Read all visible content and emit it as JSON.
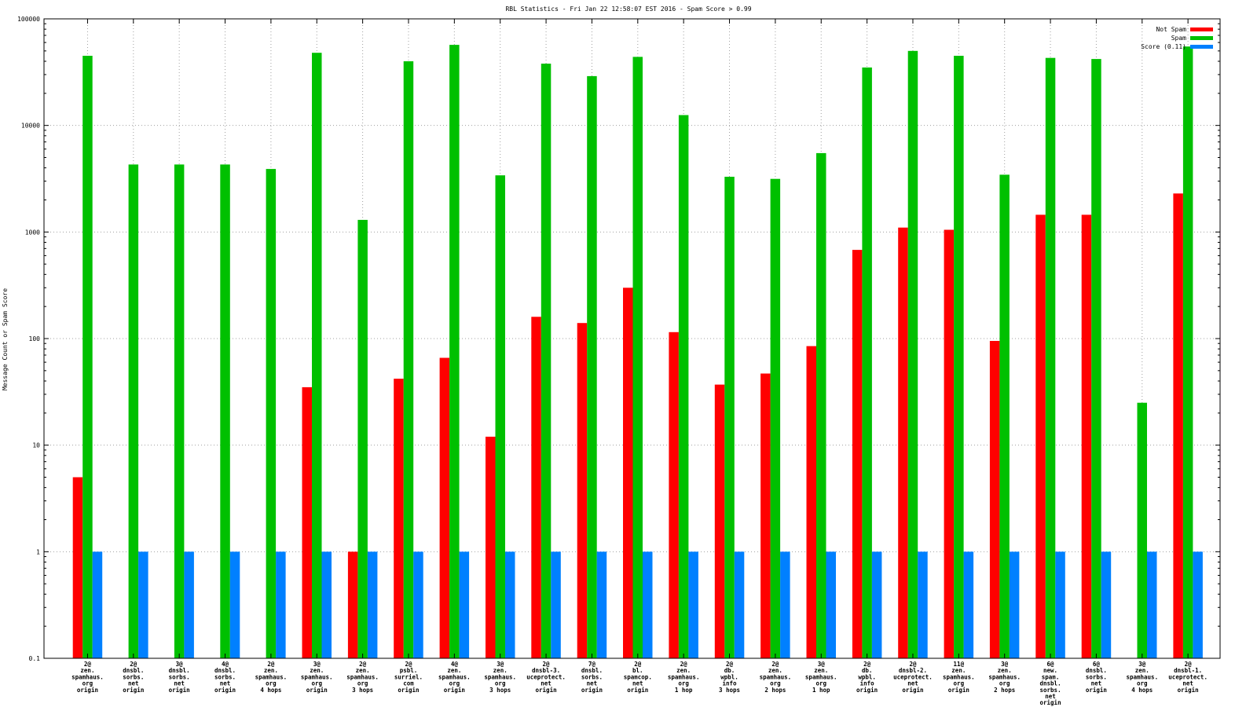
{
  "chart_data": {
    "type": "bar",
    "title": "RBL Statistics - Fri Jan 22 12:58:07 EST 2016 - Spam Score > 0.99",
    "xlabel": "",
    "ylabel": "Message Count or Spam Score",
    "yscale": "log",
    "ylim": [
      0.1,
      100000
    ],
    "yticks": [
      "0.1",
      "1",
      "10",
      "100",
      "1000",
      "10000",
      "100000"
    ],
    "grid": true,
    "legend_position": "top-right",
    "categories": [
      [
        "2@",
        "zen.",
        "spamhaus.",
        "org",
        "origin"
      ],
      [
        "2@",
        "dnsbl.",
        "sorbs.",
        "net",
        "origin"
      ],
      [
        "3@",
        "dnsbl.",
        "sorbs.",
        "net",
        "origin"
      ],
      [
        "4@",
        "dnsbl.",
        "sorbs.",
        "net",
        "origin"
      ],
      [
        "2@",
        "zen.",
        "spamhaus.",
        "org",
        "4 hops"
      ],
      [
        "3@",
        "zen.",
        "spamhaus.",
        "org",
        "origin"
      ],
      [
        "2@",
        "zen.",
        "spamhaus.",
        "org",
        "3 hops"
      ],
      [
        "2@",
        "psbl.",
        "surriel.",
        "com",
        "origin"
      ],
      [
        "4@",
        "zen.",
        "spamhaus.",
        "org",
        "origin"
      ],
      [
        "3@",
        "zen.",
        "spamhaus.",
        "org",
        "3 hops"
      ],
      [
        "2@",
        "dnsbl-3.",
        "uceprotect.",
        "net",
        "origin"
      ],
      [
        "7@",
        "dnsbl.",
        "sorbs.",
        "net",
        "origin"
      ],
      [
        "2@",
        "bl.",
        "spamcop.",
        "net",
        "origin"
      ],
      [
        "2@",
        "zen.",
        "spamhaus.",
        "org",
        "1 hop"
      ],
      [
        "2@",
        "db.",
        "wpbl.",
        "info",
        "3 hops"
      ],
      [
        "2@",
        "zen.",
        "spamhaus.",
        "org",
        "2 hops"
      ],
      [
        "3@",
        "zen.",
        "spamhaus.",
        "org",
        "1 hop"
      ],
      [
        "2@",
        "db.",
        "wpbl.",
        "info",
        "origin"
      ],
      [
        "2@",
        "dnsbl-2.",
        "uceprotect.",
        "net",
        "origin"
      ],
      [
        "11@",
        "zen.",
        "spamhaus.",
        "org",
        "origin"
      ],
      [
        "3@",
        "zen.",
        "spamhaus.",
        "org",
        "2 hops"
      ],
      [
        "6@",
        "new.",
        "spam.",
        "dnsbl.",
        "sorbs.",
        "net",
        "origin"
      ],
      [
        "6@",
        "dnsbl.",
        "sorbs.",
        "net",
        "origin"
      ],
      [
        "3@",
        "zen.",
        "spamhaus.",
        "org",
        "4 hops"
      ],
      [
        "2@",
        "dnsbl-1.",
        "uceprotect.",
        "net",
        "origin"
      ]
    ],
    "series": [
      {
        "name": "Not Spam",
        "color": "#ff0000",
        "values": [
          5,
          null,
          null,
          null,
          null,
          35,
          1,
          42,
          66,
          12,
          160,
          140,
          300,
          115,
          37,
          47,
          85,
          680,
          1100,
          1050,
          95,
          1450,
          1450,
          null,
          2300
        ]
      },
      {
        "name": "Spam",
        "color": "#00c000",
        "values": [
          45000,
          4300,
          4300,
          4300,
          3900,
          48000,
          1300,
          40000,
          57000,
          3400,
          38000,
          29000,
          44000,
          12500,
          3300,
          3150,
          5500,
          35000,
          50000,
          45000,
          3450,
          43000,
          42000,
          25,
          55000
        ]
      },
      {
        "name": "Score (0.11)",
        "color": "#0080ff",
        "values": [
          1,
          1,
          1,
          1,
          1,
          1,
          1,
          1,
          1,
          1,
          1,
          1,
          1,
          1,
          1,
          1,
          1,
          1,
          1,
          1,
          1,
          1,
          1,
          1,
          1
        ]
      }
    ]
  }
}
